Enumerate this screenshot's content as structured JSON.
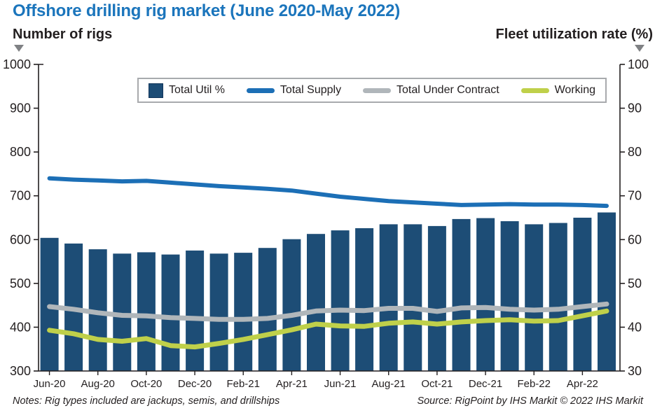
{
  "title": "Offshore drilling rig market (June 2020-May 2022)",
  "footer": {
    "notes": "Notes: Rig types included are jackups, semis, and drillships",
    "source": "Source: RigPoint by IHS Markit © 2022 IHS Markit"
  },
  "colors": {
    "title": "#1b75bc",
    "bar": "#1d4d76",
    "supply_line": "#1c6fb6",
    "contract_line": "#b0b6ba",
    "working_line": "#bfd04a",
    "axis": "#231f20",
    "arrow": "#7f8184",
    "legend_border": "#a8aaad"
  },
  "icons": {
    "left_axis_arrow": "down-triangle",
    "right_axis_arrow": "down-triangle"
  },
  "chart_data": {
    "type": "bar",
    "subtype": "bar-line-combo",
    "title": "Offshore drilling rig market (June 2020-May 2022)",
    "categories": [
      "Jun-20",
      "Jul-20",
      "Aug-20",
      "Sep-20",
      "Oct-20",
      "Nov-20",
      "Dec-20",
      "Jan-21",
      "Feb-21",
      "Mar-21",
      "Apr-21",
      "May-21",
      "Jun-21",
      "Jul-21",
      "Aug-21",
      "Sep-21",
      "Oct-21",
      "Nov-21",
      "Dec-21",
      "Jan-22",
      "Feb-22",
      "Mar-22",
      "Apr-22",
      "May-22"
    ],
    "x_tick_labels": [
      "Jun-20",
      "Aug-20",
      "Oct-20",
      "Dec-20",
      "Feb-21",
      "Apr-21",
      "Jun-21",
      "Aug-21",
      "Oct-21",
      "Dec-21",
      "Feb-22",
      "Apr-22"
    ],
    "left_axis": {
      "title": "Number of rigs",
      "range": [
        300,
        1000
      ],
      "ticks": [
        1000,
        900,
        800,
        700,
        600,
        500,
        400,
        300
      ]
    },
    "right_axis": {
      "title": "Fleet utilization rate (%)",
      "range": [
        30,
        100
      ],
      "ticks": [
        100,
        90,
        80,
        70,
        60,
        50,
        40,
        30
      ]
    },
    "grid": false,
    "legend_position": "top-center",
    "series": [
      {
        "name": "Total Util %",
        "kind": "bar",
        "axis": "right",
        "color_key": "bar",
        "values": [
          60.4,
          59.1,
          57.8,
          56.8,
          57.1,
          56.6,
          57.5,
          56.8,
          57.0,
          58.1,
          60.1,
          61.3,
          62.1,
          62.6,
          63.5,
          63.5,
          63.1,
          64.7,
          64.9,
          64.2,
          63.5,
          63.8,
          65.0,
          66.2
        ]
      },
      {
        "name": "Total Supply",
        "kind": "line",
        "axis": "left",
        "color_key": "supply_line",
        "values": [
          740,
          737,
          735,
          733,
          734,
          730,
          726,
          722,
          719,
          716,
          712,
          705,
          698,
          693,
          688,
          685,
          682,
          679,
          680,
          681,
          680,
          680,
          679,
          677
        ]
      },
      {
        "name": "Total Under Contract",
        "kind": "line",
        "axis": "left",
        "color_key": "contract_line",
        "values": [
          447,
          441,
          433,
          427,
          426,
          422,
          420,
          418,
          418,
          420,
          427,
          437,
          439,
          438,
          443,
          443,
          436,
          444,
          445,
          441,
          439,
          441,
          447,
          453
        ]
      },
      {
        "name": "Working",
        "kind": "line",
        "axis": "left",
        "color_key": "working_line",
        "values": [
          393,
          385,
          372,
          368,
          374,
          358,
          355,
          363,
          372,
          383,
          394,
          407,
          403,
          402,
          409,
          412,
          407,
          412,
          415,
          417,
          414,
          415,
          426,
          437
        ]
      }
    ]
  }
}
